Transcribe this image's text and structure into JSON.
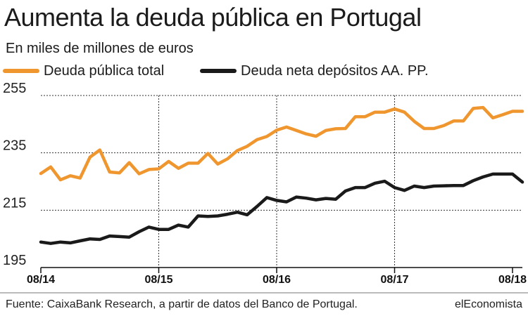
{
  "header": {
    "title": "Aumenta la deuda pública en Portugal",
    "subtitle": "En miles de millones de euros"
  },
  "legend": {
    "series_1": "Deuda pública total",
    "series_2": "Deuda neta depósitos AA. PP."
  },
  "footer": {
    "source": "Fuente: CaixaBank Research, a partir de datos del Banco de Portugal.",
    "brand": "elEconomista"
  },
  "colors": {
    "orange": "#f0962f",
    "black": "#1a1a1a",
    "grid": "#333333"
  },
  "chart_data": {
    "type": "line",
    "title": "Aumenta la deuda pública en Portugal",
    "subtitle": "En miles de millones de euros",
    "xlabel": "",
    "ylabel": "En miles de millones de euros",
    "ylim": [
      195,
      255
    ],
    "yticks": [
      255,
      235,
      215,
      195
    ],
    "xticks": [
      {
        "label": "08/14",
        "index": 0
      },
      {
        "label": "08/15",
        "index": 12
      },
      {
        "label": "08/16",
        "index": 24
      },
      {
        "label": "08/17",
        "index": 36
      },
      {
        "label": "08/18",
        "index": 48
      }
    ],
    "grid": true,
    "legend_position": "top-left",
    "x": [
      "08/14",
      "09/14",
      "10/14",
      "11/14",
      "12/14",
      "01/15",
      "02/15",
      "03/15",
      "04/15",
      "05/15",
      "06/15",
      "07/15",
      "08/15",
      "09/15",
      "10/15",
      "11/15",
      "12/15",
      "01/16",
      "02/16",
      "03/16",
      "04/16",
      "05/16",
      "06/16",
      "07/16",
      "08/16",
      "09/16",
      "10/16",
      "11/16",
      "12/16",
      "01/17",
      "02/17",
      "03/17",
      "04/17",
      "05/17",
      "06/17",
      "07/17",
      "08/17",
      "09/17",
      "10/17",
      "11/17",
      "12/17",
      "01/18",
      "02/18",
      "03/18",
      "04/18",
      "05/18",
      "06/18",
      "07/18",
      "08/18",
      "09/18"
    ],
    "series": [
      {
        "name": "Deuda pública total",
        "color": "#f0962f",
        "values": [
          227.8,
          230.1,
          225.6,
          227.0,
          226.2,
          233.5,
          236.0,
          228.3,
          228.0,
          231.6,
          227.7,
          229.2,
          229.4,
          232.0,
          229.6,
          231.4,
          231.4,
          234.8,
          231.1,
          232.9,
          235.8,
          237.3,
          239.6,
          240.7,
          242.9,
          244.0,
          242.8,
          241.6,
          240.8,
          242.8,
          243.4,
          243.5,
          247.6,
          247.6,
          249.2,
          249.2,
          250.3,
          249.2,
          246.0,
          243.5,
          243.5,
          244.5,
          246.1,
          246.1,
          250.5,
          250.8,
          247.2,
          248.3,
          249.5,
          249.5
        ]
      },
      {
        "name": "Deuda neta depósitos AA. PP.",
        "color": "#1a1a1a",
        "values": [
          203.9,
          203.4,
          203.9,
          203.6,
          204.3,
          205.0,
          204.8,
          206.0,
          205.8,
          205.6,
          207.5,
          209.1,
          208.3,
          208.3,
          209.8,
          209.1,
          213.0,
          212.8,
          213.0,
          213.6,
          214.3,
          213.4,
          216.3,
          219.4,
          218.4,
          217.9,
          219.6,
          219.2,
          218.6,
          219.1,
          218.8,
          221.7,
          222.9,
          222.9,
          224.4,
          225.1,
          222.9,
          221.9,
          223.4,
          222.9,
          223.4,
          223.5,
          223.6,
          223.6,
          225.3,
          226.6,
          227.6,
          227.6,
          227.6,
          224.8
        ]
      }
    ]
  }
}
